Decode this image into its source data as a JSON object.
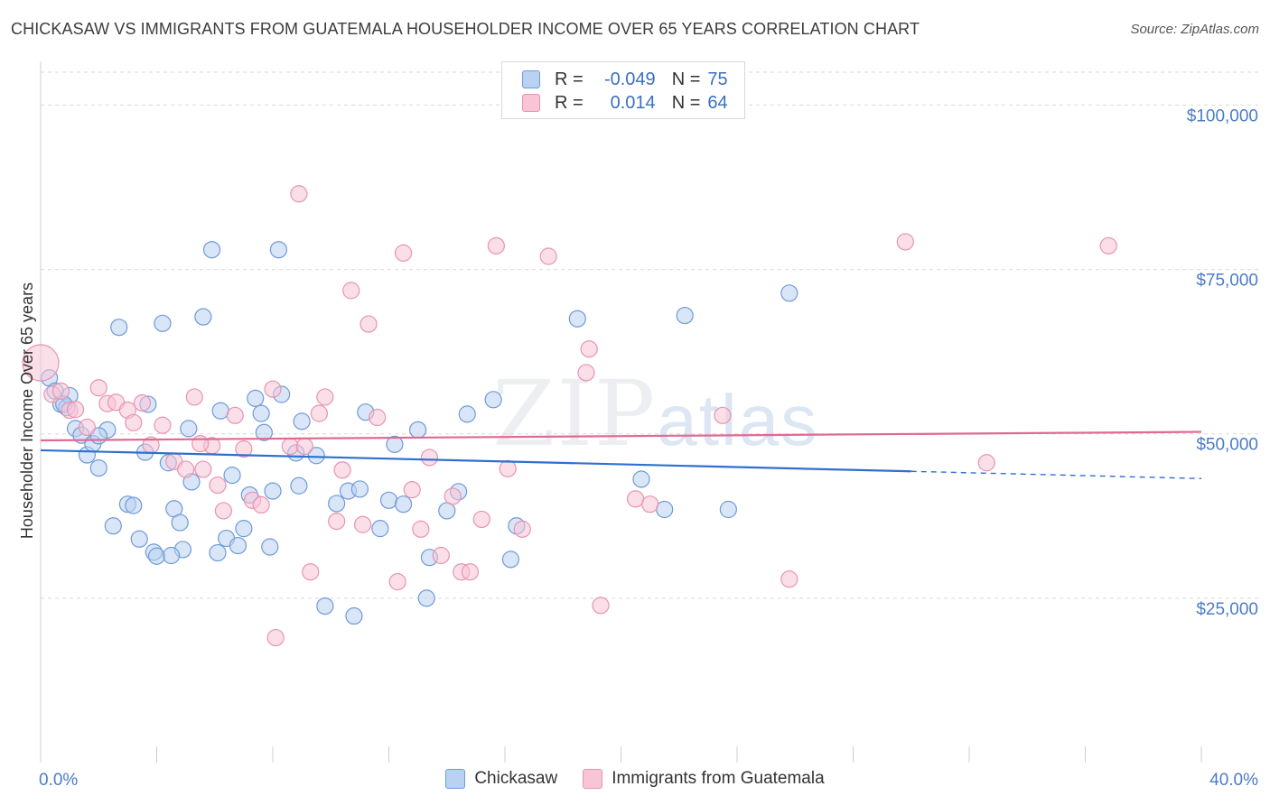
{
  "header": {
    "title": "CHICKASAW VS IMMIGRANTS FROM GUATEMALA HOUSEHOLDER INCOME OVER 65 YEARS CORRELATION CHART",
    "source": "Source: ZipAtlas.com"
  },
  "watermark": {
    "zip": "ZIP",
    "atlas": "atlas"
  },
  "legend": {
    "rows": [
      {
        "r_label": "R =",
        "r_value": "-0.049",
        "n_label": "N =",
        "n_value": "75"
      },
      {
        "r_label": "R =",
        "r_value": "0.014",
        "n_label": "N =",
        "n_value": "64"
      }
    ]
  },
  "colors": {
    "blue_fill": "#b9d2f2",
    "blue_stroke": "#6f9ad6",
    "blue_line": "#2f6fd0",
    "pink_fill": "#f8c5d6",
    "pink_stroke": "#e893b2",
    "pink_line": "#e06a94",
    "grid": "#d9d9d9",
    "tick_label": "#4a7cc9"
  },
  "chart_data": {
    "type": "scatter",
    "title": "CHICKASAW VS IMMIGRANTS FROM GUATEMALA HOUSEHOLDER INCOME OVER 65 YEARS CORRELATION CHART",
    "ylabel": "Householder Income Over 65 years",
    "xlabel": "",
    "xlim": [
      0,
      40
    ],
    "ylim": [
      0,
      105000
    ],
    "x_tick_labels": [
      "0.0%",
      "40.0%"
    ],
    "y_ticks": [
      {
        "value": 25000,
        "label": "$25,000"
      },
      {
        "value": 50000,
        "label": "$50,000"
      },
      {
        "value": 75000,
        "label": "$75,000"
      },
      {
        "value": 100000,
        "label": "$100,000"
      }
    ],
    "grid": "horizontal dashed",
    "legend_position": "bottom-center",
    "series": [
      {
        "name": "Chickasaw",
        "color": "#b9d2f2",
        "trend": {
          "x": [
            0,
            30
          ],
          "y": [
            47500,
            44300
          ],
          "dashed_to": [
            40,
            43200
          ]
        },
        "points": [
          [
            0.3,
            58500
          ],
          [
            0.5,
            56500
          ],
          [
            0.7,
            54500
          ],
          [
            0.9,
            54000
          ],
          [
            1.0,
            55800
          ],
          [
            1.2,
            50800
          ],
          [
            1.4,
            49800
          ],
          [
            1.6,
            46800
          ],
          [
            1.8,
            48500
          ],
          [
            2.0,
            44800
          ],
          [
            2.3,
            50600
          ],
          [
            2.5,
            36000
          ],
          [
            2.7,
            66200
          ],
          [
            3.0,
            39300
          ],
          [
            3.2,
            39100
          ],
          [
            3.4,
            34000
          ],
          [
            3.6,
            47200
          ],
          [
            3.7,
            54500
          ],
          [
            3.9,
            32000
          ],
          [
            4.0,
            31400
          ],
          [
            4.2,
            66800
          ],
          [
            4.4,
            45600
          ],
          [
            4.6,
            38600
          ],
          [
            4.8,
            36500
          ],
          [
            4.9,
            32400
          ],
          [
            5.1,
            50800
          ],
          [
            5.2,
            42700
          ],
          [
            5.6,
            67800
          ],
          [
            5.9,
            78000
          ],
          [
            6.1,
            31900
          ],
          [
            6.2,
            53500
          ],
          [
            6.4,
            34100
          ],
          [
            6.6,
            43700
          ],
          [
            6.8,
            33000
          ],
          [
            7.0,
            35600
          ],
          [
            7.2,
            40700
          ],
          [
            7.4,
            55400
          ],
          [
            7.6,
            53100
          ],
          [
            7.7,
            50200
          ],
          [
            7.9,
            32800
          ],
          [
            8.0,
            41300
          ],
          [
            8.2,
            78000
          ],
          [
            8.3,
            56000
          ],
          [
            8.8,
            47100
          ],
          [
            8.9,
            42100
          ],
          [
            9.0,
            51900
          ],
          [
            9.5,
            46700
          ],
          [
            9.8,
            23800
          ],
          [
            10.2,
            39400
          ],
          [
            10.6,
            41300
          ],
          [
            10.8,
            22300
          ],
          [
            11.0,
            41600
          ],
          [
            11.2,
            53300
          ],
          [
            11.7,
            35600
          ],
          [
            12.0,
            39900
          ],
          [
            12.2,
            48400
          ],
          [
            12.5,
            39300
          ],
          [
            13.0,
            50600
          ],
          [
            13.3,
            25000
          ],
          [
            13.4,
            31200
          ],
          [
            14.0,
            38300
          ],
          [
            14.4,
            41200
          ],
          [
            14.7,
            53000
          ],
          [
            15.6,
            55200
          ],
          [
            16.2,
            30900
          ],
          [
            16.4,
            36000
          ],
          [
            18.5,
            67500
          ],
          [
            20.7,
            43100
          ],
          [
            21.5,
            38500
          ],
          [
            22.2,
            68000
          ],
          [
            23.7,
            38500
          ],
          [
            25.8,
            71400
          ],
          [
            0.8,
            54500
          ],
          [
            2.0,
            49700
          ],
          [
            4.5,
            31500
          ]
        ]
      },
      {
        "name": "Immigrants from Guatemala",
        "color": "#f8c5d6",
        "trend": {
          "x": [
            0,
            40
          ],
          "y": [
            49000,
            50300
          ]
        },
        "points": [
          [
            0.0,
            60800
          ],
          [
            0.4,
            56000
          ],
          [
            0.7,
            56500
          ],
          [
            1.0,
            53600
          ],
          [
            1.2,
            53700
          ],
          [
            1.6,
            51000
          ],
          [
            2.0,
            57000
          ],
          [
            2.3,
            54600
          ],
          [
            2.6,
            54800
          ],
          [
            3.0,
            53600
          ],
          [
            3.2,
            51700
          ],
          [
            3.5,
            54700
          ],
          [
            3.8,
            48300
          ],
          [
            4.2,
            51300
          ],
          [
            4.6,
            45800
          ],
          [
            5.0,
            44600
          ],
          [
            5.3,
            55600
          ],
          [
            5.6,
            44600
          ],
          [
            5.9,
            48200
          ],
          [
            6.1,
            42200
          ],
          [
            6.3,
            38300
          ],
          [
            6.7,
            52800
          ],
          [
            7.0,
            47700
          ],
          [
            7.3,
            39900
          ],
          [
            7.6,
            39200
          ],
          [
            8.0,
            56800
          ],
          [
            8.1,
            19000
          ],
          [
            8.6,
            48100
          ],
          [
            8.9,
            86500
          ],
          [
            9.3,
            29000
          ],
          [
            9.6,
            53100
          ],
          [
            9.8,
            55600
          ],
          [
            10.2,
            36700
          ],
          [
            10.4,
            44500
          ],
          [
            10.7,
            71800
          ],
          [
            11.1,
            36200
          ],
          [
            11.3,
            66700
          ],
          [
            11.6,
            52500
          ],
          [
            12.3,
            27500
          ],
          [
            12.5,
            77500
          ],
          [
            12.8,
            41500
          ],
          [
            13.1,
            35500
          ],
          [
            13.4,
            46400
          ],
          [
            13.8,
            31500
          ],
          [
            14.2,
            40500
          ],
          [
            14.5,
            29000
          ],
          [
            14.8,
            29000
          ],
          [
            15.2,
            37000
          ],
          [
            15.7,
            78600
          ],
          [
            16.1,
            44700
          ],
          [
            16.6,
            35500
          ],
          [
            17.5,
            77000
          ],
          [
            18.8,
            59300
          ],
          [
            18.9,
            62900
          ],
          [
            19.3,
            23900
          ],
          [
            20.5,
            40100
          ],
          [
            21.0,
            39300
          ],
          [
            23.5,
            52800
          ],
          [
            25.8,
            27900
          ],
          [
            29.8,
            79200
          ],
          [
            32.6,
            45600
          ],
          [
            36.8,
            78600
          ],
          [
            5.5,
            48500
          ],
          [
            9.1,
            48100
          ]
        ]
      }
    ]
  }
}
